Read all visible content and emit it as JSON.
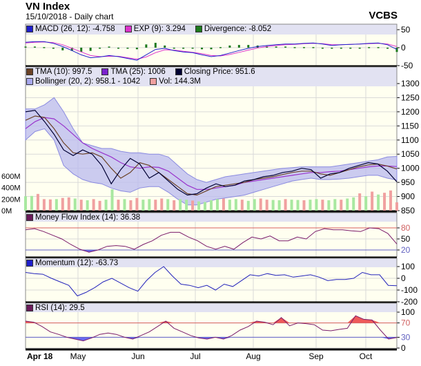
{
  "header": {
    "title": "VN Index",
    "subtitle": "15/10/2018 - Daily chart",
    "brand": "VCBS"
  },
  "colors": {
    "plot_bg": "#fffff0",
    "legend_bg": "#e2e2f2",
    "grid": "#d9d9d9",
    "bollinger": "#b9b9ef",
    "tma10": "#6b4226",
    "tma25": "#9933cc",
    "close": "#000033",
    "vol_up": "#a8e8a0",
    "vol_down": "#f0a0a0",
    "macd": "#1f1fcc",
    "exp": "#dd33cc",
    "divergence": "#1e7a1e",
    "mfi": "#7a1a6a",
    "momentum": "#2222bb",
    "rsi": "#7a1a6a",
    "upper_ref": "#d86060",
    "lower_ref": "#6060c8",
    "oversold_fill": "#6a6aee",
    "overbought_fill": "#ee5a5a"
  },
  "legends": {
    "macd": [
      {
        "label": "MACD (26, 12): -4.758",
        "color": "#1f1fcc"
      },
      {
        "label": "EXP (9): 3.294",
        "color": "#dd33cc"
      },
      {
        "label": "Divergence: -8.052",
        "color": "#1e7a1e"
      }
    ],
    "main1": [
      {
        "label": "TMA (10): 997.5",
        "color": "#6b4226"
      },
      {
        "label": "TMA (25): 1006",
        "color": "#7a22cc"
      },
      {
        "label": "Closing Price: 951.6",
        "color": "#000033"
      }
    ],
    "main2": [
      {
        "label": "Bollinger (20, 2): 958.1 - 1042",
        "color": "#a8a8ee"
      },
      {
        "label": "Vol: 144.3M",
        "color": "#f0a0a0"
      }
    ],
    "mfi": [
      {
        "label": "Money Flow Index (14): 36.38",
        "color": "#6a1a5a"
      }
    ],
    "momentum": [
      {
        "label": "Momentum (12): -63.73",
        "color": "#1f1fcc"
      }
    ],
    "rsi": [
      {
        "label": "RSI (14): 29.5",
        "color": "#6a1a5a"
      }
    ]
  },
  "chart_data": {
    "type": "line",
    "x_range": [
      "2018-04-18",
      "2018-10-15"
    ],
    "x_ticks": [
      "Apr 18",
      "May",
      "Jun",
      "Jul",
      "Aug",
      "Sep",
      "Oct"
    ],
    "macd_panel": {
      "ticks": [
        "50",
        "0",
        "-50"
      ],
      "ylim": [
        -50,
        50
      ],
      "macd": [
        15,
        17,
        17,
        12,
        3,
        -8,
        -20,
        -28,
        -26,
        -22,
        -25,
        -30,
        -35,
        -20,
        -5,
        -2,
        -8,
        -12,
        -14,
        -20,
        -25,
        -22,
        -15,
        -8,
        -2,
        3,
        6,
        8,
        10,
        10,
        12,
        13,
        10,
        6,
        8,
        9,
        10,
        12,
        13,
        8,
        -5
      ],
      "exp": [
        13,
        15,
        16,
        14,
        8,
        -2,
        -12,
        -22,
        -25,
        -24,
        -24,
        -28,
        -32,
        -26,
        -14,
        -6,
        -7,
        -10,
        -13,
        -17,
        -22,
        -23,
        -19,
        -13,
        -7,
        -1,
        3,
        6,
        8,
        9,
        11,
        12,
        11,
        8,
        8,
        9,
        10,
        11,
        12,
        10,
        3
      ],
      "divergence": [
        2,
        2,
        1,
        -2,
        -5,
        -6,
        -8,
        -6,
        -1,
        2,
        -1,
        -2,
        -3,
        6,
        9,
        4,
        -1,
        -2,
        -1,
        -3,
        -3,
        1,
        4,
        5,
        5,
        4,
        3,
        2,
        2,
        1,
        1,
        1,
        -1,
        -2,
        0,
        0,
        0,
        1,
        1,
        -2,
        -8
      ]
    },
    "price_panel": {
      "ticks": [
        "1300",
        "1250",
        "1200",
        "1150",
        "1100",
        "1050",
        "1000",
        "950",
        "900",
        "850"
      ],
      "ylim": [
        850,
        1300
      ],
      "close": [
        1200,
        1205,
        1165,
        1120,
        1065,
        1045,
        1065,
        1050,
        1010,
        945,
        995,
        1035,
        1015,
        965,
        985,
        955,
        925,
        905,
        910,
        930,
        945,
        935,
        940,
        955,
        960,
        970,
        975,
        985,
        990,
        1000,
        995,
        965,
        980,
        985,
        1000,
        1010,
        1020,
        1015,
        990,
        952
      ],
      "tma10": [
        1170,
        1185,
        1180,
        1140,
        1090,
        1055,
        1050,
        1055,
        1040,
        1000,
        965,
        985,
        1020,
        1010,
        985,
        960,
        935,
        910,
        905,
        920,
        935,
        940,
        945,
        950,
        960,
        965,
        970,
        978,
        985,
        990,
        990,
        980,
        975,
        985,
        995,
        1005,
        1012,
        1015,
        1008,
        997.5
      ],
      "tma25": [
        1140,
        1165,
        1180,
        1175,
        1150,
        1120,
        1090,
        1070,
        1055,
        1040,
        1020,
        1005,
        1000,
        1005,
        1003,
        990,
        965,
        940,
        925,
        925,
        930,
        935,
        940,
        950,
        955,
        960,
        965,
        970,
        975,
        980,
        985,
        985,
        988,
        990,
        995,
        1000,
        1005,
        1008,
        1008,
        1006
      ],
      "bollinger_upper": [
        1210,
        1210,
        1225,
        1250,
        1200,
        1140,
        1090,
        1080,
        1070,
        1070,
        1060,
        1055,
        1055,
        1050,
        1050,
        1040,
        1010,
        980,
        960,
        950,
        960,
        970,
        975,
        980,
        985,
        990,
        995,
        1000,
        1002,
        1005,
        1005,
        1005,
        1005,
        1010,
        1015,
        1020,
        1025,
        1030,
        1040,
        1042
      ],
      "bollinger_lower": [
        1100,
        1130,
        1140,
        1100,
        1010,
        980,
        960,
        950,
        945,
        930,
        920,
        915,
        930,
        935,
        935,
        915,
        890,
        870,
        870,
        880,
        890,
        895,
        900,
        905,
        915,
        925,
        935,
        945,
        955,
        960,
        965,
        960,
        960,
        962,
        965,
        970,
        975,
        975,
        965,
        958.1
      ]
    },
    "volume_panel": {
      "ticks": [
        "600M",
        "400M",
        "200M",
        "0M"
      ],
      "ylim": [
        0,
        700
      ],
      "volume": [
        250,
        255,
        290,
        200,
        195,
        200,
        220,
        230,
        210,
        190,
        180,
        200,
        170,
        190,
        370,
        190,
        200,
        180,
        220,
        190,
        200,
        190,
        210,
        200,
        180,
        200,
        190,
        175,
        160,
        150,
        180,
        200,
        210,
        190,
        200,
        190,
        170,
        200,
        210,
        190,
        185,
        180,
        200,
        190,
        185,
        180,
        190,
        200,
        190,
        180,
        200,
        190,
        210,
        230,
        300,
        250,
        330,
        280,
        310,
        350,
        144.3
      ],
      "direction": [
        1,
        1,
        -1,
        -1,
        -1,
        1,
        -1,
        -1,
        1,
        -1,
        1,
        -1,
        -1,
        1,
        1,
        -1,
        1,
        -1,
        -1,
        1,
        1,
        -1,
        -1,
        1,
        -1,
        1,
        1,
        -1,
        1,
        1,
        1,
        1,
        -1,
        1,
        1,
        -1,
        1,
        1,
        -1,
        -1,
        1,
        1,
        -1,
        1,
        1,
        -1,
        1,
        1,
        -1,
        1,
        1,
        -1,
        1,
        1,
        -1,
        1,
        -1,
        1,
        -1,
        -1,
        -1
      ]
    },
    "mfi_panel": {
      "ticks": [
        "80",
        "50",
        "20"
      ],
      "levels": [
        80,
        20
      ],
      "ylim": [
        0,
        100
      ],
      "mfi": [
        75,
        78,
        70,
        60,
        50,
        35,
        22,
        14,
        20,
        30,
        32,
        30,
        22,
        35,
        45,
        60,
        68,
        68,
        55,
        45,
        30,
        22,
        30,
        22,
        40,
        55,
        50,
        58,
        45,
        45,
        55,
        50,
        70,
        78,
        75,
        75,
        72,
        70,
        80,
        78,
        65,
        36.38
      ]
    },
    "momentum_panel": {
      "ticks": [
        "100",
        "0",
        "-100",
        "-200"
      ],
      "ylim": [
        -200,
        150
      ],
      "momentum": [
        50,
        40,
        35,
        0,
        -30,
        -60,
        -150,
        -120,
        -80,
        -30,
        0,
        -40,
        -80,
        -110,
        -20,
        50,
        100,
        20,
        -50,
        -60,
        -80,
        -60,
        -100,
        -50,
        -70,
        -20,
        30,
        20,
        40,
        25,
        30,
        10,
        20,
        30,
        10,
        -20,
        -10,
        -10,
        0,
        50,
        30,
        30,
        -60,
        -63.73
      ]
    },
    "rsi_panel": {
      "ticks": [
        "100",
        "70",
        "30",
        "0"
      ],
      "levels": [
        70,
        30
      ],
      "ylim": [
        0,
        100
      ],
      "rsi": [
        75,
        72,
        60,
        45,
        38,
        30,
        25,
        20,
        28,
        38,
        42,
        38,
        30,
        25,
        35,
        45,
        60,
        75,
        55,
        45,
        35,
        28,
        25,
        30,
        25,
        35,
        50,
        60,
        75,
        72,
        65,
        85,
        62,
        70,
        68,
        65,
        50,
        48,
        52,
        55,
        90,
        80,
        78,
        50,
        25,
        29.5
      ]
    }
  }
}
